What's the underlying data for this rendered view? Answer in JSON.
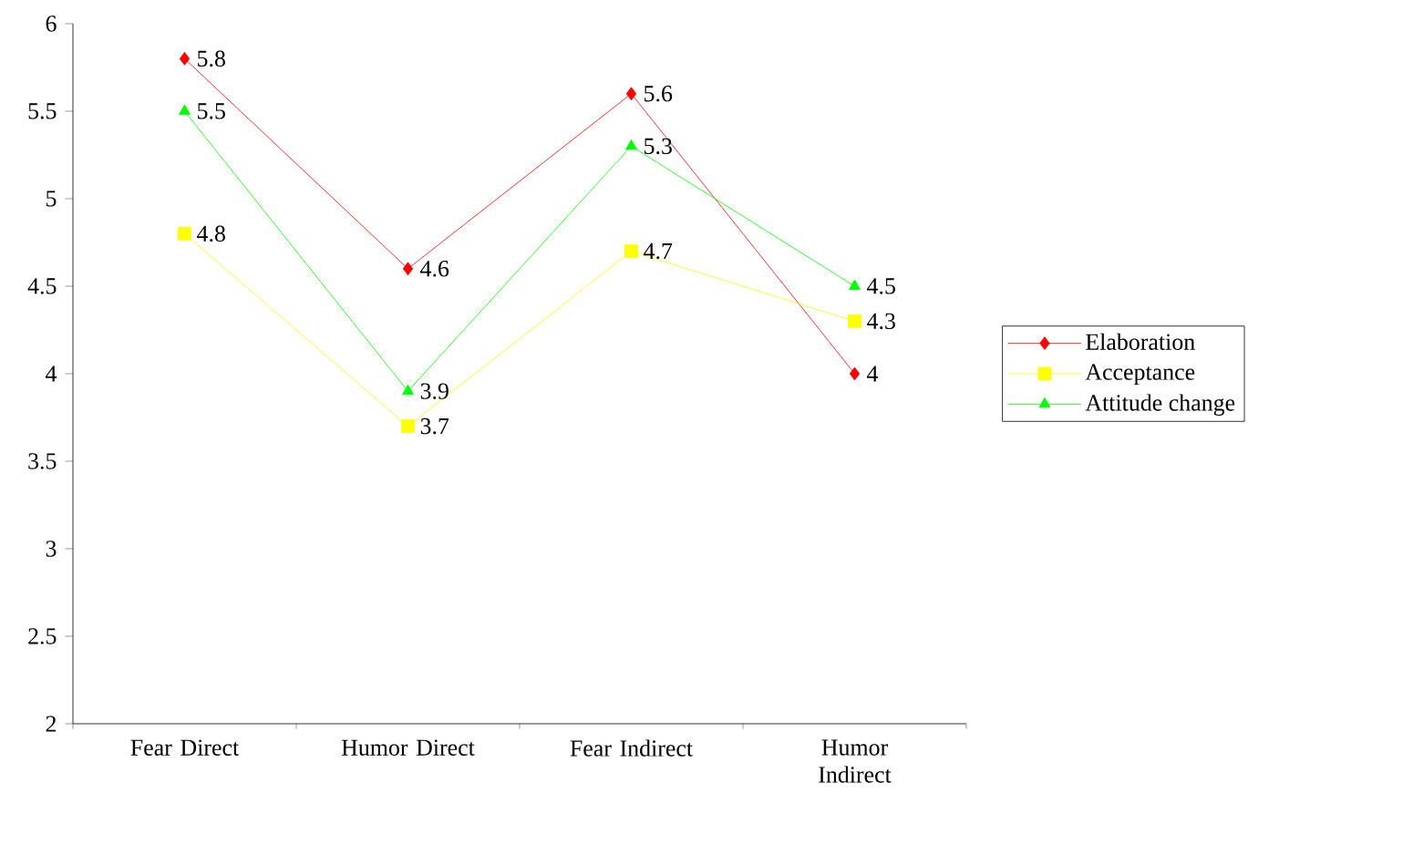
{
  "chart_data": {
    "type": "line",
    "categories": [
      "Fear Direct",
      "Humor Direct",
      "Fear Indirect",
      "Humor Indirect"
    ],
    "series": [
      {
        "name": "Elaboration",
        "color": "#ff0000",
        "marker": "diamond",
        "values": [
          5.8,
          4.6,
          5.6,
          4
        ]
      },
      {
        "name": "Acceptance",
        "color": "#ffff00",
        "marker": "square",
        "values": [
          4.8,
          3.7,
          4.7,
          4.3
        ]
      },
      {
        "name": "Attitude change",
        "color": "#00ff00",
        "marker": "triangle",
        "values": [
          5.5,
          3.9,
          5.3,
          4.5
        ]
      }
    ],
    "ylim": [
      2,
      6
    ],
    "yticks": [
      2,
      2.5,
      3,
      3.5,
      4,
      4.5,
      5,
      5.5,
      6
    ],
    "data_labels": true,
    "legend": "right",
    "grid": false,
    "line_style": "solid"
  }
}
